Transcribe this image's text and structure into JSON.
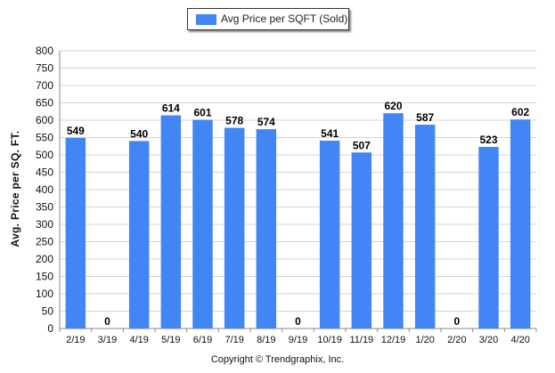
{
  "chart_data": {
    "type": "bar",
    "categories": [
      "2/19",
      "3/19",
      "4/19",
      "5/19",
      "6/19",
      "7/19",
      "8/19",
      "9/19",
      "10/19",
      "11/19",
      "12/19",
      "1/20",
      "2/20",
      "3/20",
      "4/20"
    ],
    "series": [
      {
        "name": "Avg Price per SQFT (Sold)",
        "values": [
          549,
          0,
          540,
          614,
          601,
          578,
          574,
          0,
          541,
          507,
          620,
          587,
          0,
          523,
          602
        ]
      }
    ],
    "ylabel": "Avg. Price per SQ. FT.",
    "xlabel": "",
    "ylim": [
      0,
      800
    ],
    "yticks": [
      0,
      50,
      100,
      150,
      200,
      250,
      300,
      350,
      400,
      450,
      500,
      550,
      600,
      650,
      700,
      750,
      800
    ],
    "grid": true,
    "legend_position": "top-center",
    "bar_color": "#4285f4"
  },
  "footer": {
    "copyright": "Copyright © Trendgraphix, Inc."
  }
}
